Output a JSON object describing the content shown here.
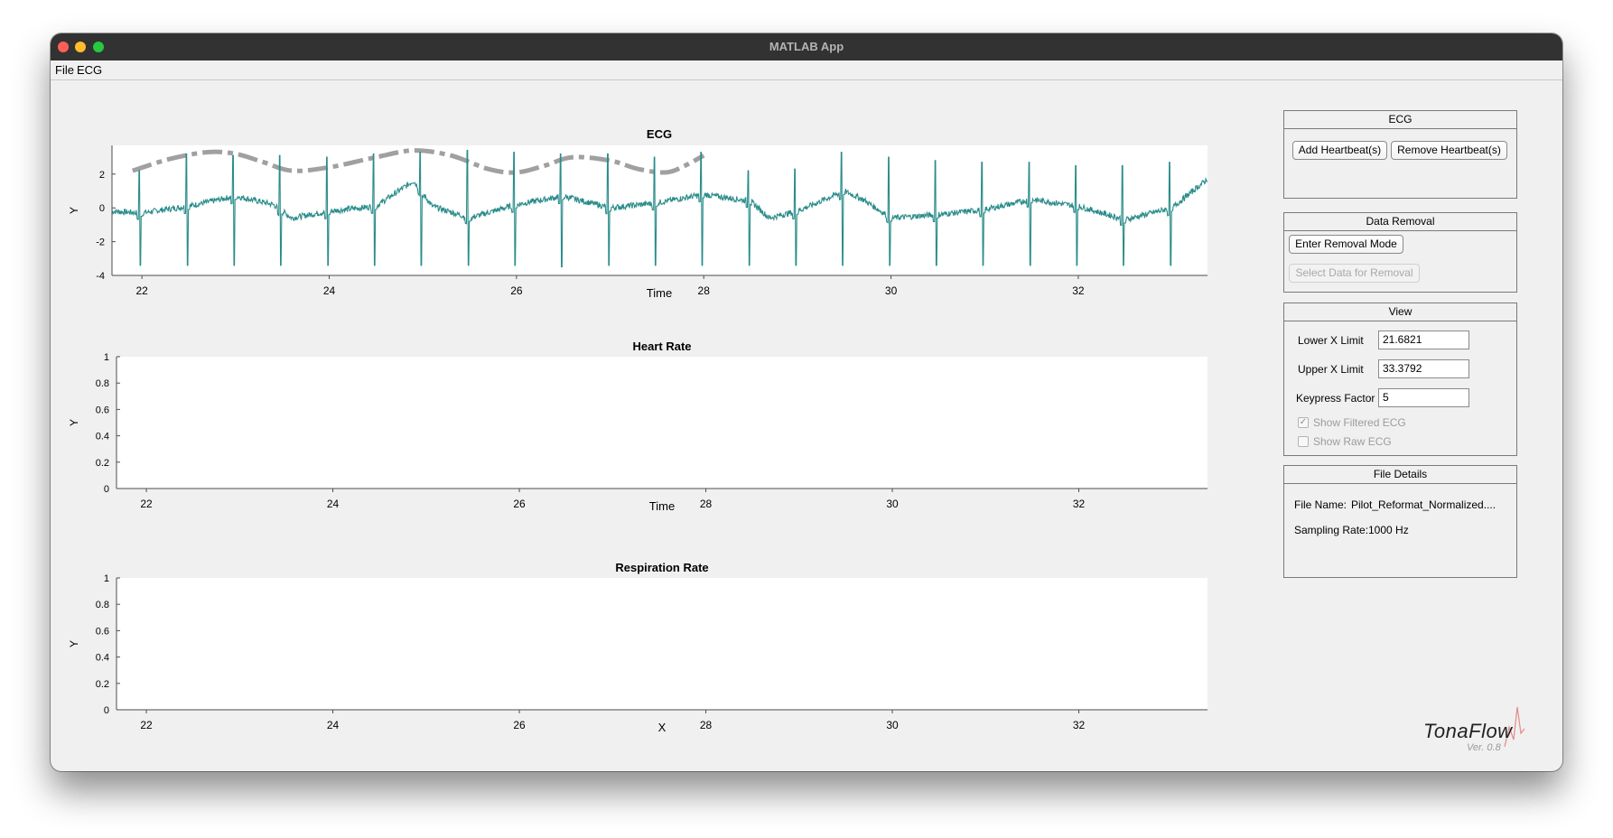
{
  "window": {
    "title": "MATLAB App"
  },
  "menu": {
    "items": [
      "File",
      "ECG"
    ]
  },
  "plots": {
    "ecg": {
      "title": "ECG",
      "xlabel": "Time",
      "ylabel": "Y",
      "yticks": [
        "2",
        "0",
        "-2",
        "-4"
      ],
      "xticks": [
        "22",
        "24",
        "26",
        "28",
        "30",
        "32"
      ]
    },
    "heart_rate": {
      "title": "Heart Rate",
      "xlabel": "Time",
      "ylabel": "Y",
      "yticks": [
        "1",
        "0.8",
        "0.6",
        "0.4",
        "0.2",
        "0"
      ],
      "xticks": [
        "22",
        "24",
        "26",
        "28",
        "30",
        "32"
      ]
    },
    "respiration": {
      "title": "Respiration Rate",
      "xlabel": "X",
      "ylabel": "Y",
      "yticks": [
        "1",
        "0.8",
        "0.6",
        "0.4",
        "0.2",
        "0"
      ],
      "xticks": [
        "22",
        "24",
        "26",
        "28",
        "30",
        "32"
      ]
    }
  },
  "chart_data": [
    {
      "type": "line",
      "title": "ECG",
      "xlabel": "Time",
      "ylabel": "Y",
      "xlim": [
        21.68,
        33.38
      ],
      "ylim": [
        -4,
        3.7
      ],
      "grid": false,
      "colors": {
        "ecg": "#2a8c8a",
        "overlay": "#a0a0a0"
      },
      "beat_times": [
        21.98,
        22.48,
        22.98,
        23.48,
        23.98,
        24.48,
        24.98,
        25.48,
        25.98,
        26.48,
        26.98,
        27.48,
        27.98,
        28.48,
        28.98,
        29.48,
        29.98,
        30.48,
        30.98,
        31.48,
        31.98,
        32.48,
        32.98
      ],
      "peak_values": [
        2.2,
        3.2,
        3.1,
        3.1,
        3.0,
        3.2,
        3.3,
        3.4,
        3.3,
        3.2,
        3.2,
        3.0,
        3.3,
        2.2,
        2.3,
        3.3,
        3.0,
        2.8,
        2.7,
        2.7,
        2.5,
        2.5,
        2.7
      ],
      "trough_values": [
        -3.4,
        -3.4,
        -3.4,
        -3.4,
        -3.4,
        -3.4,
        -3.4,
        -3.4,
        -3.4,
        -3.5,
        -3.4,
        -3.4,
        -3.4,
        -3.4,
        -3.4,
        -3.4,
        -3.4,
        -3.4,
        -3.4,
        -3.4,
        -3.4,
        -3.4,
        -3.4
      ],
      "baseline": {
        "x": [
          21.68,
          22.0,
          22.5,
          23.0,
          23.4,
          23.6,
          24.0,
          24.5,
          24.9,
          25.1,
          25.5,
          26.0,
          26.5,
          27.0,
          27.5,
          28.0,
          28.5,
          28.7,
          29.0,
          29.5,
          29.7,
          30.0,
          30.5,
          31.0,
          31.5,
          32.0,
          32.5,
          33.0,
          33.38
        ],
        "y": [
          -0.2,
          -0.3,
          0.1,
          0.7,
          0.2,
          -0.6,
          -0.2,
          0.1,
          1.6,
          0.1,
          -0.6,
          0.2,
          0.7,
          0.0,
          0.3,
          0.8,
          0.4,
          -0.6,
          -0.2,
          1.0,
          0.5,
          -0.6,
          -0.4,
          -0.1,
          0.5,
          0.1,
          -0.7,
          0.0,
          1.7
        ]
      },
      "overlay": {
        "style": "dash-dot",
        "x": [
          21.9,
          22.3,
          22.7,
          23.0,
          23.3,
          23.6,
          24.0,
          24.5,
          24.9,
          25.3,
          25.7,
          26.0,
          26.3,
          26.6,
          27.0,
          27.3,
          27.6,
          27.8,
          28.0
        ],
        "y": [
          2.2,
          2.9,
          3.3,
          3.2,
          2.7,
          2.2,
          2.4,
          3.0,
          3.4,
          3.1,
          2.3,
          2.1,
          2.5,
          3.0,
          2.8,
          2.3,
          2.1,
          2.5,
          3.1
        ]
      }
    },
    {
      "type": "line",
      "title": "Heart Rate",
      "xlabel": "Time",
      "ylabel": "Y",
      "xlim": [
        21.68,
        33.38
      ],
      "ylim": [
        0,
        1
      ],
      "grid": false,
      "series": []
    },
    {
      "type": "line",
      "title": "Respiration Rate",
      "xlabel": "X",
      "ylabel": "Y",
      "xlim": [
        21.68,
        33.38
      ],
      "ylim": [
        0,
        1
      ],
      "grid": false,
      "series": []
    }
  ],
  "panels": {
    "ecg": {
      "title": "ECG",
      "add_label": "Add Heartbeat(s)",
      "remove_label": "Remove Heartbeat(s)"
    },
    "removal": {
      "title": "Data Removal",
      "enter_label": "Enter Removal Mode",
      "select_label": "Select Data for Removal"
    },
    "view": {
      "title": "View",
      "lower_label": "Lower X Limit",
      "lower_value": "21.6821",
      "upper_label": "Upper X Limit",
      "upper_value": "33.3792",
      "keypress_label": "Keypress Factor",
      "keypress_value": "5",
      "show_filtered_label": "Show Filtered ECG",
      "show_filtered_checked": true,
      "show_raw_label": "Show Raw ECG",
      "show_raw_checked": false
    },
    "file": {
      "title": "File Details",
      "filename_label": "File Name:",
      "filename_value": "Pilot_Reformat_Normalized....",
      "sampling_label": "Sampling Rate:",
      "sampling_value": "1000 Hz"
    }
  },
  "logo": {
    "name": "TonaFlow",
    "version": "Ver. 0.8"
  }
}
